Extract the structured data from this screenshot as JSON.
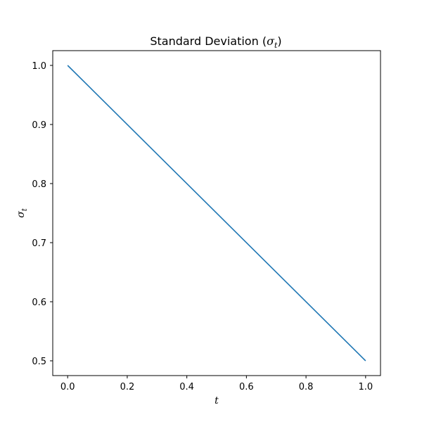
{
  "chart_data": {
    "type": "line",
    "title_text": "Standard Deviation (",
    "title_symbol": "σ",
    "title_subscript": "t",
    "title_close": ")",
    "xlabel": "t",
    "ylabel_symbol": "σ",
    "ylabel_subscript": "t",
    "xlim": [
      -0.05,
      1.05
    ],
    "ylim": [
      0.475,
      1.025
    ],
    "xticks": [
      0.0,
      0.2,
      0.4,
      0.6,
      0.8,
      1.0
    ],
    "xtick_labels": [
      "0.0",
      "0.2",
      "0.4",
      "0.6",
      "0.8",
      "1.0"
    ],
    "yticks": [
      0.5,
      0.6,
      0.7,
      0.8,
      0.9,
      1.0
    ],
    "ytick_labels": [
      "0.5",
      "0.6",
      "0.7",
      "0.8",
      "0.9",
      "1.0"
    ],
    "grid": false,
    "series": [
      {
        "color": "#1f77b4",
        "x": [
          0.0,
          1.0
        ],
        "y": [
          1.0,
          0.5
        ]
      }
    ]
  }
}
